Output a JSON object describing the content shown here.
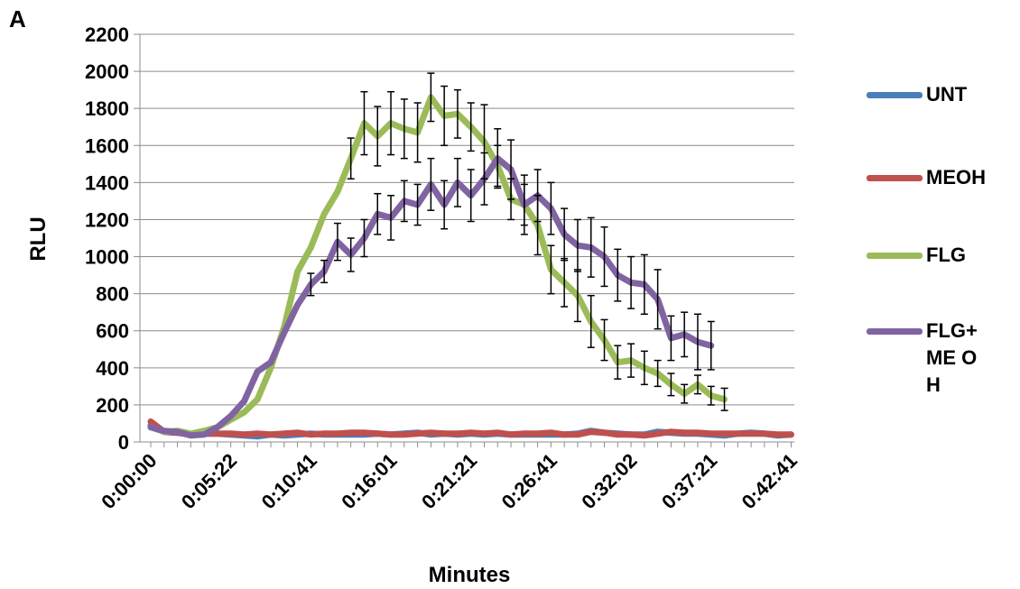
{
  "panel_label": "A",
  "chart_data": {
    "type": "line",
    "xlabel": "Minutes",
    "ylabel": "RLU",
    "ylim": [
      0,
      2200
    ],
    "yticks": [
      0,
      200,
      400,
      600,
      800,
      1000,
      1200,
      1400,
      1600,
      1800,
      2000,
      2200
    ],
    "xtick_labels": [
      "0:00:00",
      "0:05:22",
      "0:10:41",
      "0:16:01",
      "0:21:21",
      "0:26:41",
      "0:32:02",
      "0:37:21",
      "0:42:41"
    ],
    "grid": "horizontal",
    "legend_position": "right",
    "series": [
      {
        "name": "UNT",
        "color": "#4a7ebb",
        "values": [
          90,
          55,
          50,
          40,
          45,
          45,
          40,
          35,
          30,
          40,
          35,
          40,
          45,
          40,
          40,
          40,
          40,
          45,
          40,
          45,
          50,
          40,
          45,
          40,
          45,
          40,
          45,
          40,
          40,
          40,
          40,
          40,
          45,
          60,
          50,
          45,
          40,
          40,
          55,
          50,
          45,
          45,
          40,
          35,
          45,
          50,
          45,
          35,
          40
        ]
      },
      {
        "name": "MEOH",
        "color": "#c0504d",
        "values": [
          110,
          55,
          50,
          40,
          45,
          45,
          45,
          40,
          45,
          40,
          45,
          50,
          40,
          45,
          45,
          50,
          50,
          45,
          40,
          40,
          45,
          50,
          45,
          45,
          50,
          45,
          50,
          40,
          45,
          45,
          50,
          40,
          40,
          55,
          50,
          40,
          40,
          35,
          45,
          55,
          50,
          50,
          45,
          45,
          45,
          45,
          45,
          40,
          40
        ]
      },
      {
        "name": "FLG",
        "color": "#9bbb59",
        "values": [
          80,
          55,
          60,
          45,
          60,
          80,
          120,
          160,
          230,
          400,
          620,
          920,
          1050,
          1230,
          1350,
          1530,
          1720,
          1650,
          1720,
          1690,
          1670,
          1860,
          1760,
          1770,
          1700,
          1620,
          1490,
          1310,
          1280,
          1170,
          930,
          860,
          790,
          650,
          550,
          430,
          440,
          400,
          370,
          310,
          260,
          310,
          250,
          230
        ],
        "errors": [
          0,
          0,
          0,
          0,
          0,
          0,
          0,
          0,
          0,
          0,
          0,
          0,
          0,
          0,
          0,
          110,
          170,
          160,
          170,
          160,
          160,
          130,
          160,
          130,
          130,
          200,
          110,
          110,
          110,
          160,
          130,
          130,
          140,
          140,
          110,
          90,
          90,
          90,
          70,
          60,
          50,
          50,
          50,
          60
        ]
      },
      {
        "name": "FLG+ME OH",
        "color": "#8064a2",
        "values": [
          80,
          60,
          55,
          35,
          40,
          80,
          140,
          220,
          380,
          430,
          590,
          740,
          850,
          920,
          1080,
          1010,
          1100,
          1230,
          1210,
          1300,
          1280,
          1390,
          1280,
          1400,
          1330,
          1420,
          1530,
          1470,
          1280,
          1330,
          1260,
          1120,
          1060,
          1050,
          1000,
          900,
          860,
          850,
          770,
          560,
          580,
          540,
          520
        ],
        "errors": [
          0,
          0,
          0,
          0,
          0,
          0,
          0,
          0,
          0,
          0,
          0,
          0,
          60,
          60,
          100,
          90,
          100,
          110,
          120,
          110,
          110,
          140,
          130,
          130,
          140,
          140,
          160,
          160,
          160,
          140,
          140,
          140,
          140,
          160,
          160,
          140,
          140,
          160,
          160,
          120,
          120,
          150,
          130
        ]
      }
    ]
  }
}
